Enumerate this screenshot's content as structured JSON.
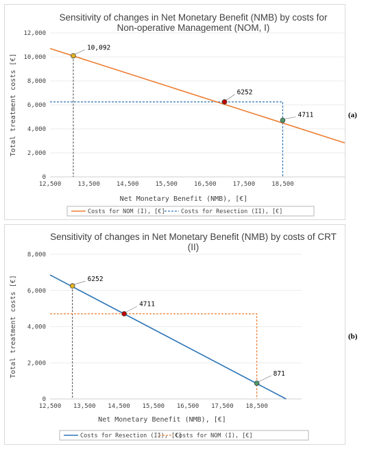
{
  "panel_tags": [
    "(a)",
    "(b)"
  ],
  "colors": {
    "orange": "#ED7D31",
    "blue": "#2E75B6",
    "dark_dash": "#404040",
    "point_yellow": "#E2B422",
    "point_red": "#C00000",
    "point_green": "#4E9A6A"
  },
  "chart_data": [
    {
      "type": "line",
      "title": [
        "Sensitivity of changes in Net Monetary Benefit (NMB) by costs for",
        "Non-operative Management (NOM, I)"
      ],
      "xlabel": "Net Monetary Benefit (NMB), [€]",
      "ylabel": "Total treatment costs [€]",
      "xlim": [
        12500,
        20100
      ],
      "ylim": [
        0,
        12000
      ],
      "x_ticks": [
        "12,500",
        "13,500",
        "14,500",
        "15,500",
        "16,500",
        "17,500",
        "18,500"
      ],
      "y_ticks": [
        "0",
        "2,000",
        "4,000",
        "6,000",
        "8,000",
        "10,000",
        "12,000"
      ],
      "grid": "horizontal",
      "legend": "bottom",
      "series": [
        {
          "name": "Costs for NOM (I), [€]",
          "style": "solid",
          "color": "#ED7D31",
          "x": [
            12500,
            20100
          ],
          "y": [
            10700,
            2830
          ]
        },
        {
          "name": "Costs for Resection (II),  [€]",
          "style": "dashed",
          "color": "#2E75B6",
          "x": [
            12500,
            18500,
            18500
          ],
          "y": [
            6252,
            6252,
            0
          ]
        }
      ],
      "guides": [
        {
          "style": "dashed",
          "color": "#404040",
          "x": [
            13100,
            13100
          ],
          "y": [
            10092,
            0
          ]
        }
      ],
      "points": [
        {
          "x": 13100,
          "y": 10092,
          "label": "10,092",
          "color": "#E2B422"
        },
        {
          "x": 17000,
          "y": 6252,
          "label": "6252",
          "color": "#C00000"
        },
        {
          "x": 18500,
          "y": 4711,
          "label": "4711",
          "color": "#4E9A6A"
        }
      ]
    },
    {
      "type": "line",
      "title": [
        "Sensitivity of changes in Net Monetary Benefit (NMB) by costs of CRT",
        "(II)"
      ],
      "xlabel": "Net Monetary Benefit (NMB), [€]",
      "ylabel": "Total treatment costs [€]",
      "xlim": [
        12500,
        19800
      ],
      "ylim": [
        0,
        8000
      ],
      "x_ticks": [
        "12,500",
        "13,500",
        "14,500",
        "15,500",
        "16,500",
        "17,500",
        "18,500"
      ],
      "y_ticks": [
        "0",
        "2,000",
        "4,000",
        "6,000",
        "8,000"
      ],
      "grid": "horizontal",
      "legend": "bottom",
      "series": [
        {
          "name": "Costs for Resection (II),  [€]",
          "style": "solid",
          "color": "#2E75B6",
          "x": [
            12500,
            19350
          ],
          "y": [
            6860,
            0
          ]
        },
        {
          "name": "Costs for NOM (I), [€]",
          "style": "dashed",
          "color": "#ED7D31",
          "x": [
            12500,
            18500,
            18500
          ],
          "y": [
            4711,
            4711,
            0
          ]
        }
      ],
      "guides": [
        {
          "style": "dashed",
          "color": "#404040",
          "x": [
            13150,
            13150
          ],
          "y": [
            6252,
            0
          ]
        }
      ],
      "points": [
        {
          "x": 13150,
          "y": 6252,
          "label": "6252",
          "color": "#E2B422"
        },
        {
          "x": 14650,
          "y": 4711,
          "label": "4711",
          "color": "#C00000"
        },
        {
          "x": 18500,
          "y": 871,
          "label": "871",
          "color": "#4E9A6A"
        }
      ]
    }
  ]
}
